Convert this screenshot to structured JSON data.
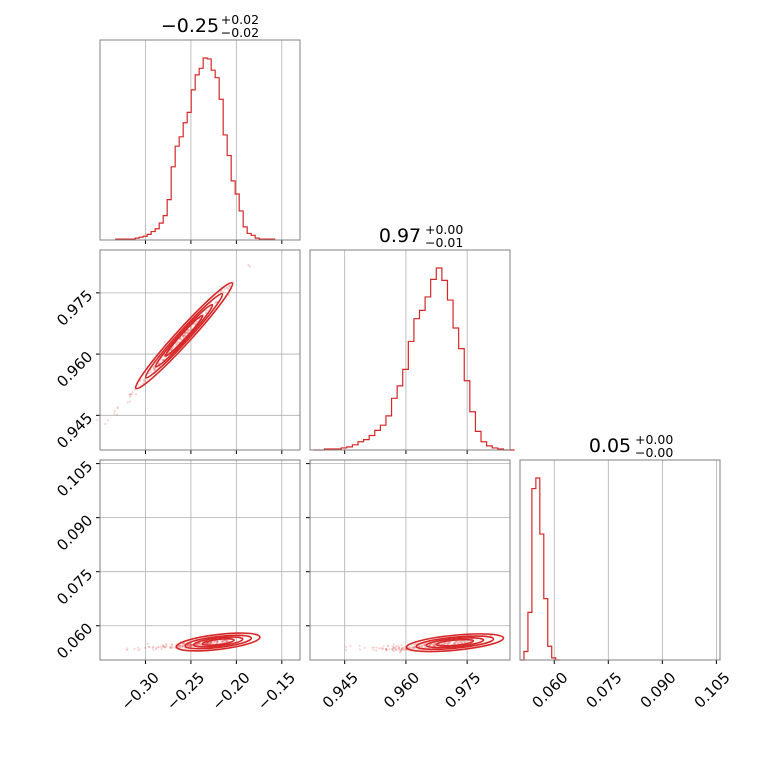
{
  "chart_data": {
    "type": "corner",
    "color": "#d62728",
    "grid": true,
    "parameters": [
      {
        "title": {
          "main": "−0.25",
          "upper": "+0.02",
          "lower": "−0.02"
        },
        "range": [
          -0.35,
          -0.13
        ],
        "ticks": [
          -0.3,
          -0.25,
          -0.2,
          -0.15
        ],
        "tick_labels": [
          "−0.30",
          "−0.25",
          "−0.20",
          "−0.15"
        ],
        "hist": {
          "start": -0.3333,
          "width": 0.0044,
          "values": [
            1,
            1,
            1,
            1,
            1,
            2,
            3,
            4,
            6,
            9,
            12,
            18,
            26,
            43,
            78,
            100,
            110,
            125,
            136,
            160,
            176,
            183,
            194,
            193,
            181,
            173,
            150,
            112,
            90,
            63,
            49,
            31,
            14,
            7,
            5,
            2,
            1,
            1,
            1,
            1
          ]
        }
      },
      {
        "title": {
          "main": "0.97",
          "upper": "+0.00",
          "lower": "−0.01"
        },
        "range": [
          0.9365,
          0.9855
        ],
        "ticks": [
          0.945,
          0.96,
          0.975
        ],
        "tick_labels": [
          "0.945",
          "0.960",
          "0.975"
        ],
        "hist": {
          "start": 0.9373,
          "width": 0.00137,
          "values": [
            0,
            0,
            1,
            1,
            1,
            2,
            3,
            5,
            8,
            10,
            14,
            19,
            24,
            33,
            50,
            62,
            78,
            105,
            127,
            135,
            148,
            165,
            176,
            164,
            145,
            118,
            98,
            67,
            37,
            18,
            8,
            4,
            2,
            1,
            0,
            0
          ]
        }
      },
      {
        "title": {
          "main": "0.05",
          "upper": "+0.00",
          "lower": "−0.00"
        },
        "range": [
          0.0505,
          0.106
        ],
        "ticks": [
          0.06,
          0.075,
          0.09,
          0.105
        ],
        "tick_labels": [
          "0.060",
          "0.075",
          "0.090",
          "0.105"
        ],
        "hist": {
          "start": 0.0505,
          "width": 0.0011,
          "values": [
            0,
            8,
            45,
            162,
            172,
            119,
            58,
            13,
            2,
            0
          ]
        }
      }
    ],
    "scatter_cells": [
      {
        "x_param": 0,
        "y_param": 1,
        "y_ticks": [
          0.945,
          0.96,
          0.975
        ],
        "y_tick_labels": [
          "0.945",
          "0.960",
          "0.975"
        ]
      },
      {
        "x_param": 0,
        "y_param": 2,
        "y_ticks": [
          0.06,
          0.075,
          0.09,
          0.105
        ],
        "y_tick_labels": [
          "0.060",
          "0.075",
          "0.090",
          "0.105"
        ]
      },
      {
        "x_param": 1,
        "y_param": 2,
        "y_ticks": [
          0.06,
          0.075,
          0.09,
          0.105
        ],
        "y_tick_labels": []
      }
    ],
    "correlation": {
      "x0": [
        -0.3433,
        0.9435
      ],
      "x1": [
        -0.1877,
        0.9815
      ],
      "x0_vs_x2": [
        [
          -0.32,
          0.0535
        ],
        [
          -0.26,
          0.0545
        ],
        [
          -0.22,
          0.0555
        ],
        [
          -0.185,
          0.0575
        ]
      ],
      "x1_vs_x2": [
        [
          0.946,
          0.0537
        ],
        [
          0.96,
          0.0538
        ],
        [
          0.972,
          0.0553
        ],
        [
          0.981,
          0.0575
        ]
      ]
    }
  }
}
